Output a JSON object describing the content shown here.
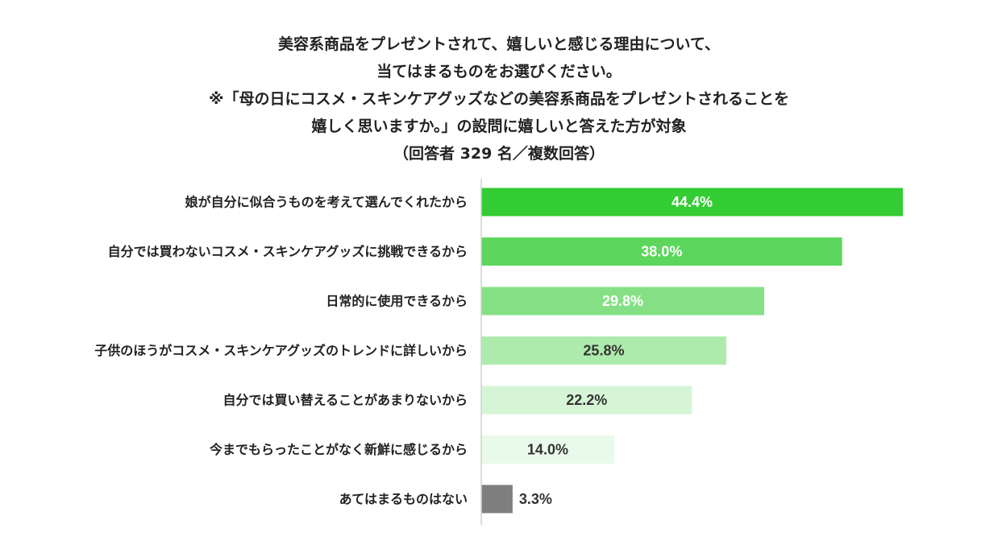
{
  "chart_data": {
    "type": "bar",
    "orientation": "horizontal",
    "title_lines": [
      "美容系商品をプレゼントされて、嬉しいと感じる理由について、",
      "当てはまるものをお選びください。",
      "※「母の日にコスメ・スキンケアグッズなどの美容系商品をプレゼントされることを",
      "嬉しく思いますか。」の設問に嬉しいと答えた方が対象",
      "（回答者 329 名／複数回答）"
    ],
    "categories": [
      "娘が自分に似合うものを考えて選んでくれたから",
      "自分では買わないコスメ・スキンケアグッズに挑戦できるから",
      "日常的に使用できるから",
      "子供のほうがコスメ・スキンケアグッズのトレンドに詳しいから",
      "自分では買い替えることがあまりないから",
      "今までもらったことがなく新鮮に感じるから",
      "あてはまるものはない"
    ],
    "values": [
      44.4,
      38.0,
      29.8,
      25.8,
      22.2,
      14.0,
      3.3
    ],
    "value_labels": [
      "44.4%",
      "38.0%",
      "29.8%",
      "25.8%",
      "22.2%",
      "14.0%",
      "3.3%"
    ],
    "bar_colors": [
      "#33cc33",
      "#5cd65c",
      "#85e085",
      "#adebad",
      "#d6f5d6",
      "#eafaea",
      "#7f7f7f"
    ],
    "value_label_colors": [
      "#ffffff",
      "#ffffff",
      "#ffffff",
      "#333333",
      "#333333",
      "#333333",
      "#333333"
    ],
    "xlim": [
      0,
      50
    ],
    "grid": false,
    "legend": "none"
  }
}
